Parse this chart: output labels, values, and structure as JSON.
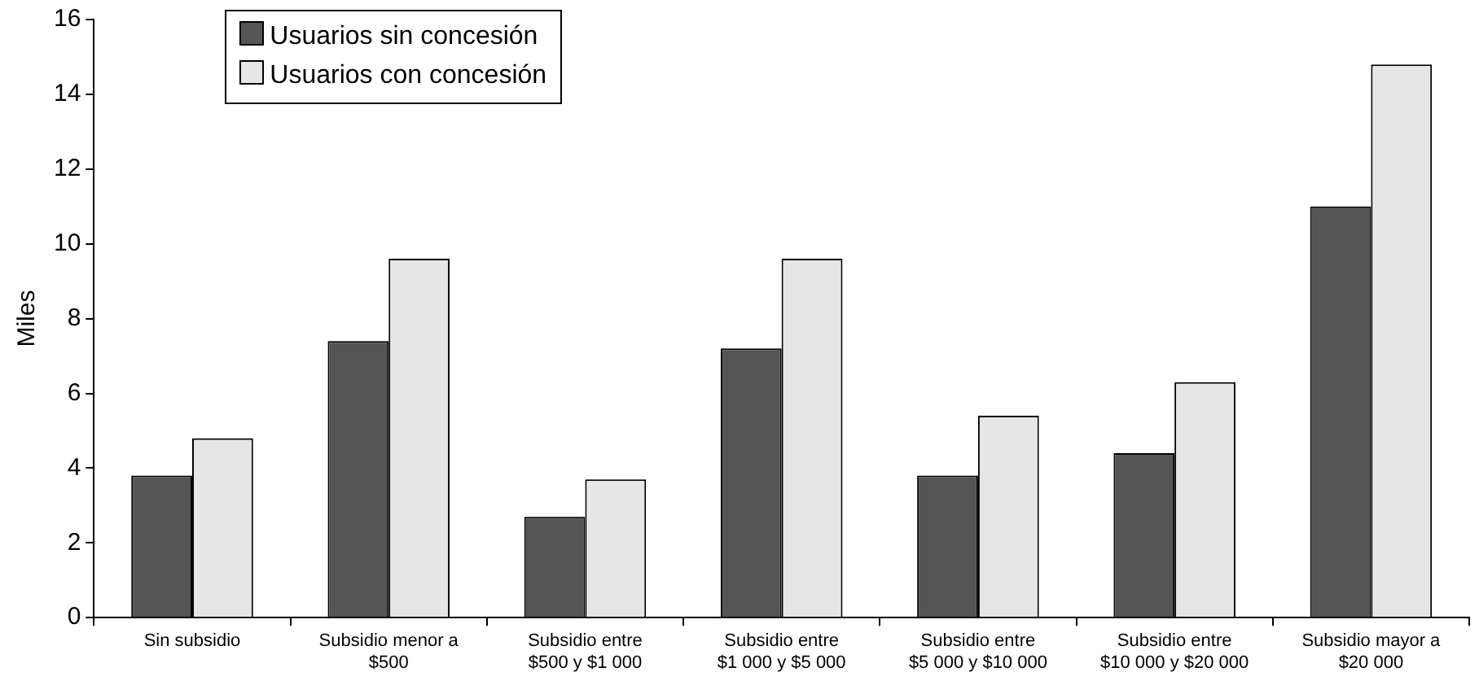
{
  "chart_data": {
    "type": "bar",
    "ylabel": "Miles",
    "categories": [
      "Sin subsidio",
      "Subsidio menor a\n$500",
      "Subsidio entre\n$500 y $1 000",
      "Subsidio entre\n$1 000 y $5 000",
      "Subsidio entre\n$5 000 y $10 000",
      "Subsidio entre\n$10 000 y $20 000",
      "Subsidio mayor a\n$20 000"
    ],
    "series": [
      {
        "name": "Usuarios sin concesión",
        "color": "#555555",
        "values": [
          3.8,
          7.4,
          2.7,
          7.2,
          3.8,
          4.4,
          11.0
        ]
      },
      {
        "name": "Usuarios con concesión",
        "color": "#e6e6e6",
        "values": [
          4.8,
          9.6,
          3.7,
          9.6,
          5.4,
          6.3,
          14.8
        ]
      }
    ],
    "ylim": [
      0,
      16
    ],
    "yticks": [
      0,
      2,
      4,
      6,
      8,
      10,
      12,
      14,
      16
    ],
    "grid": false,
    "legend": "top left"
  }
}
